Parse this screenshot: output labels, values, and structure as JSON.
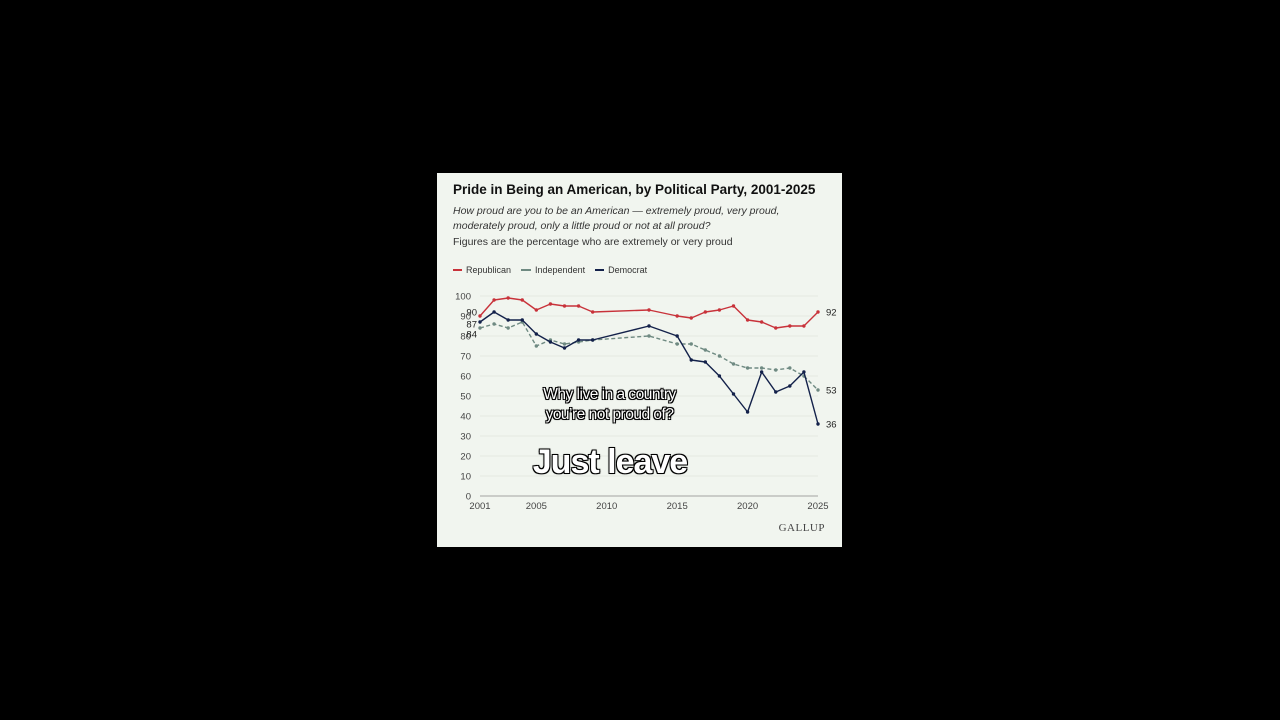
{
  "chart_data": {
    "type": "line",
    "title": "Pride in Being an American, by Political Party, 2001-2025",
    "subtitle": "How proud are you to be an American — extremely proud, very proud, moderately proud, only a little proud or not at all proud?",
    "note": "Figures are the percentage who are extremely or very proud",
    "source": "GALLUP",
    "ylim": [
      0,
      100
    ],
    "yticks": [
      0,
      10,
      20,
      30,
      40,
      50,
      60,
      70,
      80,
      90,
      100
    ],
    "xlim": [
      2001,
      2025
    ],
    "xticks": [
      2001,
      2005,
      2010,
      2015,
      2020,
      2025
    ],
    "legend_position": "top-left",
    "series": [
      {
        "name": "Republican",
        "color": "#c8323a",
        "style": "solid",
        "start_label": "90",
        "end_label": "92",
        "x": [
          2001,
          2002,
          2003,
          2004,
          2005,
          2006,
          2007,
          2008,
          2009,
          2013,
          2015,
          2016,
          2017,
          2018,
          2019,
          2020,
          2021,
          2022,
          2023,
          2024,
          2025
        ],
        "y": [
          90,
          98,
          99,
          98,
          93,
          96,
          95,
          95,
          92,
          93,
          90,
          89,
          92,
          93,
          95,
          88,
          87,
          84,
          85,
          85,
          92
        ]
      },
      {
        "name": "Independent",
        "color": "#6f8a82",
        "style": "dashed",
        "start_label": "84",
        "end_label": "53",
        "x": [
          2001,
          2002,
          2003,
          2004,
          2005,
          2006,
          2007,
          2008,
          2009,
          2013,
          2015,
          2016,
          2017,
          2018,
          2019,
          2020,
          2021,
          2022,
          2023,
          2024,
          2025
        ],
        "y": [
          84,
          86,
          84,
          87,
          75,
          78,
          76,
          77,
          78,
          80,
          76,
          76,
          73,
          70,
          66,
          64,
          64,
          63,
          64,
          60,
          53
        ]
      },
      {
        "name": "Democrat",
        "color": "#13214a",
        "style": "solid",
        "start_label": "87",
        "end_label": "36",
        "x": [
          2001,
          2002,
          2003,
          2004,
          2005,
          2006,
          2007,
          2008,
          2009,
          2013,
          2015,
          2016,
          2017,
          2018,
          2019,
          2020,
          2021,
          2022,
          2023,
          2024,
          2025
        ],
        "y": [
          87,
          92,
          88,
          88,
          81,
          77,
          74,
          78,
          78,
          85,
          80,
          68,
          67,
          60,
          51,
          42,
          62,
          52,
          55,
          62,
          36
        ]
      }
    ]
  },
  "overlay": {
    "line1": "Why live in a country",
    "line2": "you’re not proud of?",
    "headline": "Just leave"
  }
}
